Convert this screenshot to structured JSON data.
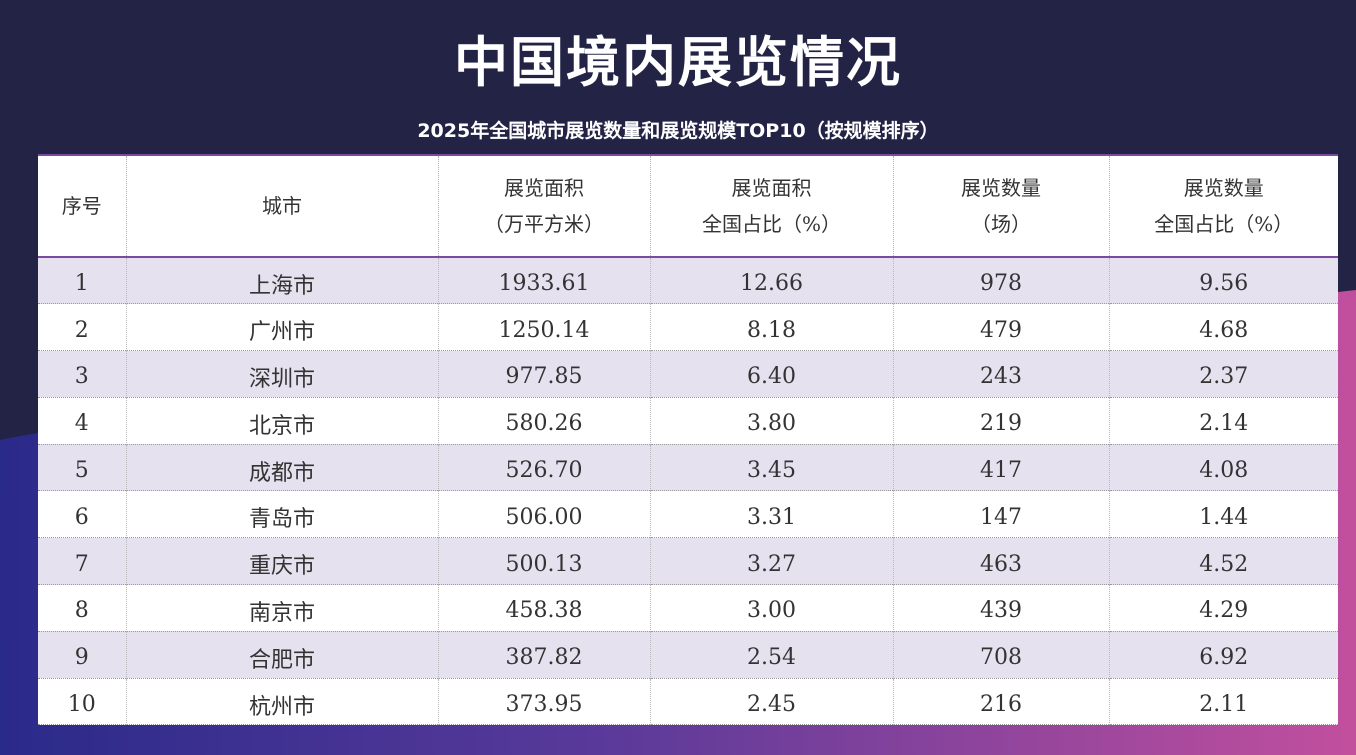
{
  "title": "中国境内展览情况",
  "subtitle": "2025年全国城市展览数量和展览规模TOP10（按规模排序）",
  "table": {
    "headers": [
      {
        "line1": "序号",
        "line2": ""
      },
      {
        "line1": "城市",
        "line2": ""
      },
      {
        "line1": "展览面积",
        "line2": "（万平方米）"
      },
      {
        "line1": "展览面积",
        "line2": "全国占比（%）"
      },
      {
        "line1": "展览数量",
        "line2": "（场）"
      },
      {
        "line1": "展览数量",
        "line2": "全国占比（%）"
      }
    ],
    "rows": [
      {
        "rank": "1",
        "city": "上海市",
        "area": "1933.61",
        "area_share": "12.66",
        "count": "978",
        "count_share": "9.56"
      },
      {
        "rank": "2",
        "city": "广州市",
        "area": "1250.14",
        "area_share": "8.18",
        "count": "479",
        "count_share": "4.68"
      },
      {
        "rank": "3",
        "city": "深圳市",
        "area": "977.85",
        "area_share": "6.40",
        "count": "243",
        "count_share": "2.37"
      },
      {
        "rank": "4",
        "city": "北京市",
        "area": "580.26",
        "area_share": "3.80",
        "count": "219",
        "count_share": "2.14"
      },
      {
        "rank": "5",
        "city": "成都市",
        "area": "526.70",
        "area_share": "3.45",
        "count": "417",
        "count_share": "4.08"
      },
      {
        "rank": "6",
        "city": "青岛市",
        "area": "506.00",
        "area_share": "3.31",
        "count": "147",
        "count_share": "1.44"
      },
      {
        "rank": "7",
        "city": "重庆市",
        "area": "500.13",
        "area_share": "3.27",
        "count": "463",
        "count_share": "4.52"
      },
      {
        "rank": "8",
        "city": "南京市",
        "area": "458.38",
        "area_share": "3.00",
        "count": "439",
        "count_share": "4.29"
      },
      {
        "rank": "9",
        "city": "合肥市",
        "area": "387.82",
        "area_share": "2.54",
        "count": "708",
        "count_share": "6.92"
      },
      {
        "rank": "10",
        "city": "杭州市",
        "area": "373.95",
        "area_share": "2.45",
        "count": "216",
        "count_share": "2.11"
      }
    ]
  },
  "colors": {
    "background": "#232345",
    "gradient_blue": "#2b2f8f",
    "gradient_magenta": "#c04a9a",
    "header_rule": "#7b4a9e",
    "row_stripe": "#e6e1ef"
  }
}
